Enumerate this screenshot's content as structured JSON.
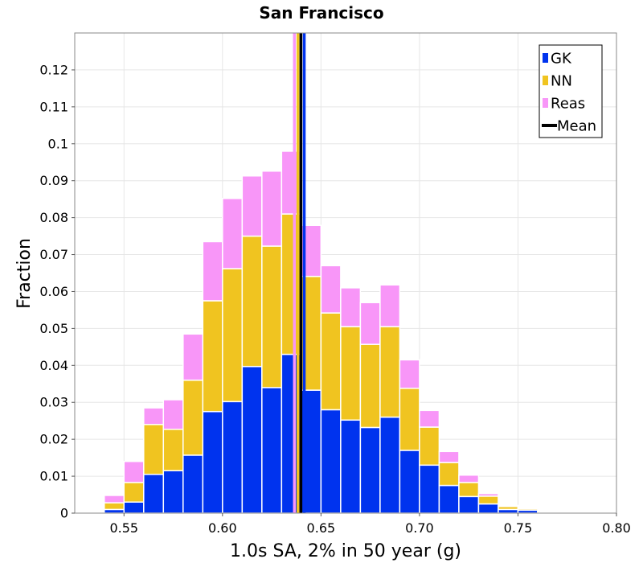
{
  "chart_data": {
    "type": "bar",
    "stacked": true,
    "title": "San Francisco",
    "xlabel": "1.0s SA, 2% in 50 year (g)",
    "ylabel": "Fraction",
    "xlim": [
      0.525,
      0.8
    ],
    "ylim": [
      0,
      0.13
    ],
    "bin_width": 0.01,
    "x_ticks": [
      0.55,
      0.6,
      0.65,
      0.7,
      0.75,
      0.8
    ],
    "x_tick_labels": [
      "0.55",
      "0.60",
      "0.65",
      "0.70",
      "0.75",
      "0.80"
    ],
    "y_ticks": [
      0,
      0.01,
      0.02,
      0.03,
      0.04,
      0.05,
      0.06,
      0.07,
      0.08,
      0.09,
      0.1,
      0.11,
      0.12
    ],
    "y_tick_labels": [
      "0",
      "0.01",
      "0.02",
      "0.03",
      "0.04",
      "0.05",
      "0.06",
      "0.07",
      "0.08",
      "0.09",
      "0.1",
      "0.11",
      "0.12"
    ],
    "grid": true,
    "legend_position": "top-right",
    "bin_starts": [
      0.53,
      0.54,
      0.55,
      0.56,
      0.57,
      0.58,
      0.59,
      0.6,
      0.61,
      0.62,
      0.63,
      0.64,
      0.65,
      0.66,
      0.67,
      0.68,
      0.69,
      0.7,
      0.71,
      0.72,
      0.73,
      0.74,
      0.75,
      0.76,
      0.77,
      0.78,
      0.79
    ],
    "series": [
      {
        "name": "GK",
        "color": "#0033ee",
        "values": [
          0.0003,
          0.001,
          0.003,
          0.0105,
          0.0115,
          0.0157,
          0.0275,
          0.0302,
          0.0397,
          0.034,
          0.043,
          0.0333,
          0.028,
          0.0252,
          0.0232,
          0.026,
          0.017,
          0.013,
          0.0075,
          0.0045,
          0.0025,
          0.001,
          0.0008,
          0.0003,
          0.0002,
          0.0001,
          0.0001
        ]
      },
      {
        "name": "NN",
        "color": "#f0c420",
        "values": [
          0.0002,
          0.0018,
          0.0053,
          0.0135,
          0.0112,
          0.0203,
          0.03,
          0.036,
          0.0353,
          0.0383,
          0.038,
          0.0308,
          0.0262,
          0.0253,
          0.0225,
          0.0245,
          0.0168,
          0.0103,
          0.0062,
          0.0038,
          0.0021,
          0.0008,
          0.0004,
          0.0002,
          0.0001,
          0.0001,
          0.0001
        ]
      },
      {
        "name": "Reas",
        "color": "#f896f8",
        "values": [
          0.0002,
          0.002,
          0.0057,
          0.0045,
          0.008,
          0.0125,
          0.016,
          0.019,
          0.0163,
          0.0203,
          0.017,
          0.0138,
          0.0128,
          0.0105,
          0.0113,
          0.0113,
          0.0077,
          0.0045,
          0.003,
          0.002,
          0.0007,
          0.0003,
          0.0003,
          0.0001,
          0.0001,
          0.0001,
          0.0001
        ]
      }
    ],
    "vertical_lines": [
      {
        "name": "Reas",
        "x": 0.6365,
        "color": "#f896f8"
      },
      {
        "name": "NN",
        "x": 0.6383,
        "color": "#f0c420"
      },
      {
        "name": "Mean",
        "x": 0.6398,
        "color": "#000000"
      },
      {
        "name": "GK",
        "x": 0.6415,
        "color": "#0033ee"
      }
    ],
    "legend": [
      {
        "label": "GK",
        "color": "#0033ee",
        "kind": "box"
      },
      {
        "label": "NN",
        "color": "#f0c420",
        "kind": "box"
      },
      {
        "label": "Reas",
        "color": "#f896f8",
        "kind": "box"
      },
      {
        "label": "Mean",
        "color": "#000000",
        "kind": "line"
      }
    ]
  }
}
